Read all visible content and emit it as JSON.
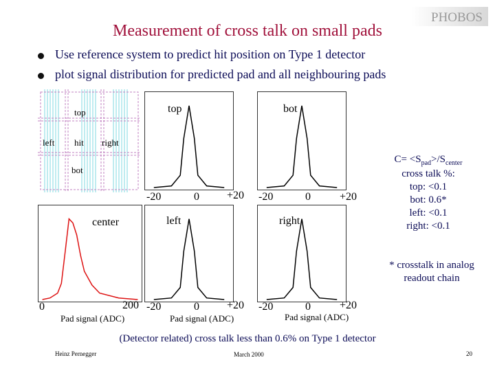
{
  "logo": {
    "text": "PHOBOS"
  },
  "title": "Measurement of cross talk on small pads",
  "bullets": [
    "Use reference system to predict hit position on Type 1 detector",
    "plot signal distribution for predicted pad and all neighbouring pads"
  ],
  "pad_diagram": {
    "labels": {
      "top": "top",
      "left": "left",
      "hit": "hit",
      "right": "right",
      "bot": "bot"
    }
  },
  "plot_labels": {
    "top": "top",
    "bot": "bot",
    "left": "left",
    "right": "right",
    "center": "center"
  },
  "axis_ticks": {
    "neighbour": [
      "-20",
      "0",
      "+20"
    ],
    "center": [
      "0",
      "200"
    ]
  },
  "axis_title": "Pad signal (ADC)",
  "crosstalk": {
    "formula_prefix": "C= <S",
    "formula_sub1": "pad",
    "formula_mid": ">/S",
    "formula_sub2": "center",
    "header": "cross talk %:",
    "top": "top: <0.1",
    "bot": "bot: 0.6*",
    "left": "left: <0.1",
    "right": "right: <0.1"
  },
  "footnote": [
    "* crosstalk in analog",
    "readout chain"
  ],
  "conclusion": "(Detector related) cross talk less than 0.6% on Type 1 detector",
  "footer": {
    "author": "Heinz Pernegger",
    "date": "March 2000",
    "page": "20"
  },
  "colors": {
    "title": "#a0103a",
    "text": "#0a0a55",
    "center_hist": "#dd1111",
    "neighbour_hist": "#000000"
  },
  "chart_data": [
    {
      "type": "line",
      "label": "top",
      "x": [
        -20,
        -10,
        -5,
        -3,
        0,
        3,
        5,
        10,
        20
      ],
      "values": [
        0,
        2,
        15,
        60,
        100,
        60,
        15,
        2,
        0
      ],
      "xlim": [
        -25,
        25
      ]
    },
    {
      "type": "line",
      "label": "bot",
      "x": [
        -20,
        -10,
        -5,
        -3,
        0,
        3,
        5,
        10,
        20
      ],
      "values": [
        0,
        2,
        15,
        60,
        100,
        60,
        15,
        2,
        0
      ],
      "xlim": [
        -25,
        25
      ]
    },
    {
      "type": "line",
      "label": "left",
      "x": [
        -20,
        -10,
        -5,
        -3,
        0,
        3,
        5,
        10,
        20
      ],
      "values": [
        0,
        2,
        15,
        60,
        100,
        60,
        15,
        2,
        0
      ],
      "xlim": [
        -25,
        25
      ]
    },
    {
      "type": "line",
      "label": "right",
      "x": [
        -20,
        -10,
        -5,
        -3,
        0,
        3,
        5,
        10,
        20
      ],
      "values": [
        0,
        2,
        15,
        60,
        100,
        60,
        15,
        2,
        0
      ],
      "xlim": [
        -25,
        25
      ]
    },
    {
      "type": "line",
      "label": "center",
      "x": [
        0,
        20,
        40,
        50,
        60,
        70,
        80,
        90,
        100,
        110,
        130,
        150,
        200,
        250
      ],
      "values": [
        0,
        2,
        8,
        20,
        60,
        100,
        95,
        80,
        55,
        35,
        18,
        8,
        2,
        0
      ],
      "xlim": [
        -10,
        260
      ]
    }
  ]
}
